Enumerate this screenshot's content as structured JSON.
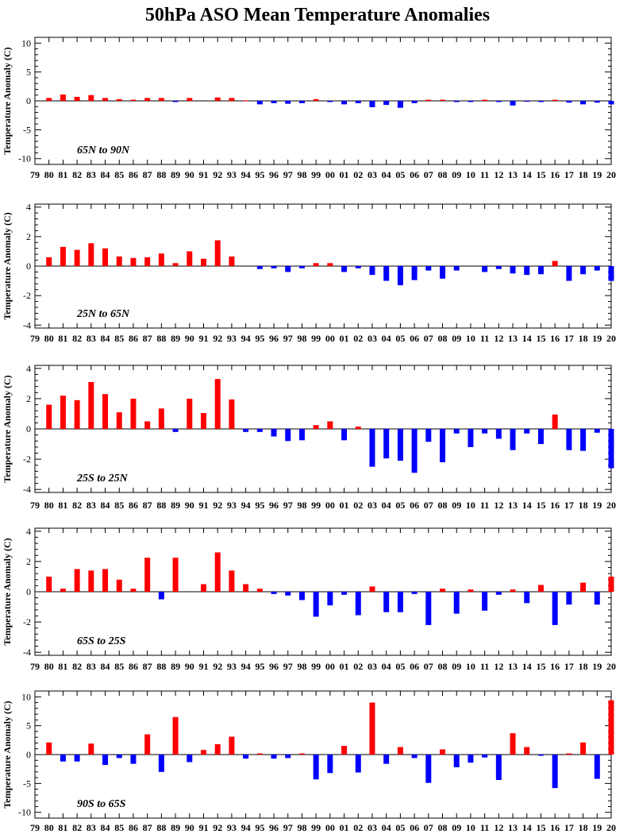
{
  "title": "50hPa ASO Mean Temperature Anomalies",
  "colors": {
    "positive": "#ff0000",
    "negative": "#0000ff",
    "axis": "#000000"
  },
  "chart_data": [
    {
      "type": "bar",
      "region": "65N to 90N",
      "ylabel": "Temperature Anomaly (C)",
      "ylim": [
        -11,
        11
      ],
      "yticks": [
        -10,
        -5,
        0,
        5,
        10
      ],
      "categories": [
        "79",
        "80",
        "81",
        "82",
        "83",
        "84",
        "85",
        "86",
        "87",
        "88",
        "89",
        "90",
        "91",
        "92",
        "93",
        "94",
        "95",
        "96",
        "97",
        "98",
        "99",
        "00",
        "01",
        "02",
        "03",
        "04",
        "05",
        "06",
        "07",
        "08",
        "09",
        "10",
        "11",
        "12",
        "13",
        "14",
        "15",
        "16",
        "17",
        "18",
        "19",
        "20"
      ],
      "values": [
        null,
        0.5,
        1.1,
        0.7,
        1.0,
        0.5,
        0.3,
        0.2,
        0.5,
        0.5,
        -0.2,
        0.5,
        null,
        0.6,
        0.5,
        0.1,
        -0.6,
        -0.4,
        -0.5,
        -0.4,
        0.3,
        -0.2,
        -0.6,
        -0.4,
        -1.1,
        -0.7,
        -1.2,
        -0.4,
        0.2,
        0.2,
        -0.2,
        -0.2,
        0.2,
        -0.2,
        -0.8,
        -0.1,
        -0.2,
        0.2,
        -0.3,
        -0.6,
        -0.3,
        -0.6
      ]
    },
    {
      "type": "bar",
      "region": "25N to 65N",
      "ylabel": "Temperature Anomaly (C)",
      "ylim": [
        -4.2,
        4.2
      ],
      "yticks": [
        -4,
        -2,
        0,
        2,
        4
      ],
      "categories": [
        "79",
        "80",
        "81",
        "82",
        "83",
        "84",
        "85",
        "86",
        "87",
        "88",
        "89",
        "90",
        "91",
        "92",
        "93",
        "94",
        "95",
        "96",
        "97",
        "98",
        "99",
        "00",
        "01",
        "02",
        "03",
        "04",
        "05",
        "06",
        "07",
        "08",
        "09",
        "10",
        "11",
        "12",
        "13",
        "14",
        "15",
        "16",
        "17",
        "18",
        "19",
        "20"
      ],
      "values": [
        null,
        0.6,
        1.3,
        1.1,
        1.55,
        1.2,
        0.65,
        0.55,
        0.6,
        0.85,
        0.2,
        1.0,
        0.5,
        1.75,
        0.65,
        null,
        -0.2,
        -0.15,
        -0.4,
        -0.15,
        0.2,
        0.2,
        -0.4,
        -0.15,
        -0.6,
        -1.0,
        -1.3,
        -0.95,
        -0.3,
        -0.85,
        -0.3,
        null,
        -0.4,
        -0.2,
        -0.5,
        -0.6,
        -0.55,
        0.35,
        -1.0,
        -0.55,
        -0.3,
        -1.0
      ]
    },
    {
      "type": "bar",
      "region": "25S to 25N",
      "ylabel": "Temperature Anomaly (C)",
      "ylim": [
        -4.2,
        4.2
      ],
      "yticks": [
        -4,
        -2,
        0,
        2,
        4
      ],
      "categories": [
        "79",
        "80",
        "81",
        "82",
        "83",
        "84",
        "85",
        "86",
        "87",
        "88",
        "89",
        "90",
        "91",
        "92",
        "93",
        "94",
        "95",
        "96",
        "97",
        "98",
        "99",
        "00",
        "01",
        "02",
        "03",
        "04",
        "05",
        "06",
        "07",
        "08",
        "09",
        "10",
        "11",
        "12",
        "13",
        "14",
        "15",
        "16",
        "17",
        "18",
        "19",
        "20"
      ],
      "values": [
        null,
        1.6,
        2.2,
        1.9,
        3.1,
        2.3,
        1.1,
        2.0,
        0.5,
        1.35,
        -0.2,
        2.0,
        1.05,
        3.3,
        1.95,
        -0.2,
        -0.2,
        -0.5,
        -0.8,
        -0.75,
        0.25,
        0.5,
        -0.75,
        0.15,
        -2.5,
        -1.95,
        -2.1,
        -2.9,
        -0.85,
        -2.2,
        -0.3,
        -1.2,
        -0.3,
        -0.65,
        -1.4,
        -0.3,
        -1.0,
        0.95,
        -1.4,
        -1.45,
        -0.25,
        -2.6
      ]
    },
    {
      "type": "bar",
      "region": "65S to 25S",
      "ylabel": "Temperature Anomaly (C)",
      "ylim": [
        -4.2,
        4.2
      ],
      "yticks": [
        -4,
        -2,
        0,
        2,
        4
      ],
      "categories": [
        "79",
        "80",
        "81",
        "82",
        "83",
        "84",
        "85",
        "86",
        "87",
        "88",
        "89",
        "90",
        "91",
        "92",
        "93",
        "94",
        "95",
        "96",
        "97",
        "98",
        "99",
        "00",
        "01",
        "02",
        "03",
        "04",
        "05",
        "06",
        "07",
        "08",
        "09",
        "10",
        "11",
        "12",
        "13",
        "14",
        "15",
        "16",
        "17",
        "18",
        "19",
        "20"
      ],
      "values": [
        null,
        1.0,
        0.2,
        1.5,
        1.4,
        1.5,
        0.8,
        0.2,
        2.25,
        -0.5,
        2.25,
        null,
        0.5,
        2.6,
        1.4,
        0.5,
        0.2,
        -0.15,
        -0.25,
        -0.55,
        -1.65,
        -0.9,
        -0.2,
        -1.55,
        0.35,
        -1.35,
        -1.35,
        -0.15,
        -2.2,
        0.2,
        -1.45,
        0.15,
        -1.25,
        -0.2,
        0.15,
        -0.75,
        0.45,
        -2.2,
        -0.85,
        0.6,
        -0.85,
        1.0
      ]
    },
    {
      "type": "bar",
      "region": "90S to 65S",
      "ylabel": "Temperature Anomaly (C)",
      "ylim": [
        -11,
        11
      ],
      "yticks": [
        -10,
        -5,
        0,
        5,
        10
      ],
      "categories": [
        "79",
        "80",
        "81",
        "82",
        "83",
        "84",
        "85",
        "86",
        "87",
        "88",
        "89",
        "90",
        "91",
        "92",
        "93",
        "94",
        "95",
        "96",
        "97",
        "98",
        "99",
        "00",
        "01",
        "02",
        "03",
        "04",
        "05",
        "06",
        "07",
        "08",
        "09",
        "10",
        "11",
        "12",
        "13",
        "14",
        "15",
        "16",
        "17",
        "18",
        "19",
        "20"
      ],
      "values": [
        null,
        2.1,
        -1.2,
        -1.2,
        1.9,
        -1.8,
        -0.6,
        -1.6,
        3.5,
        -3.0,
        6.5,
        -1.3,
        0.8,
        1.8,
        3.1,
        -0.7,
        0.2,
        -0.7,
        -0.6,
        0.2,
        -4.3,
        -3.2,
        1.5,
        -3.1,
        9.0,
        -1.6,
        1.3,
        -0.6,
        -4.9,
        0.9,
        -2.2,
        -1.4,
        -0.5,
        -4.4,
        3.7,
        1.3,
        -0.2,
        -5.8,
        0.2,
        2.1,
        -4.2,
        9.4
      ]
    }
  ]
}
